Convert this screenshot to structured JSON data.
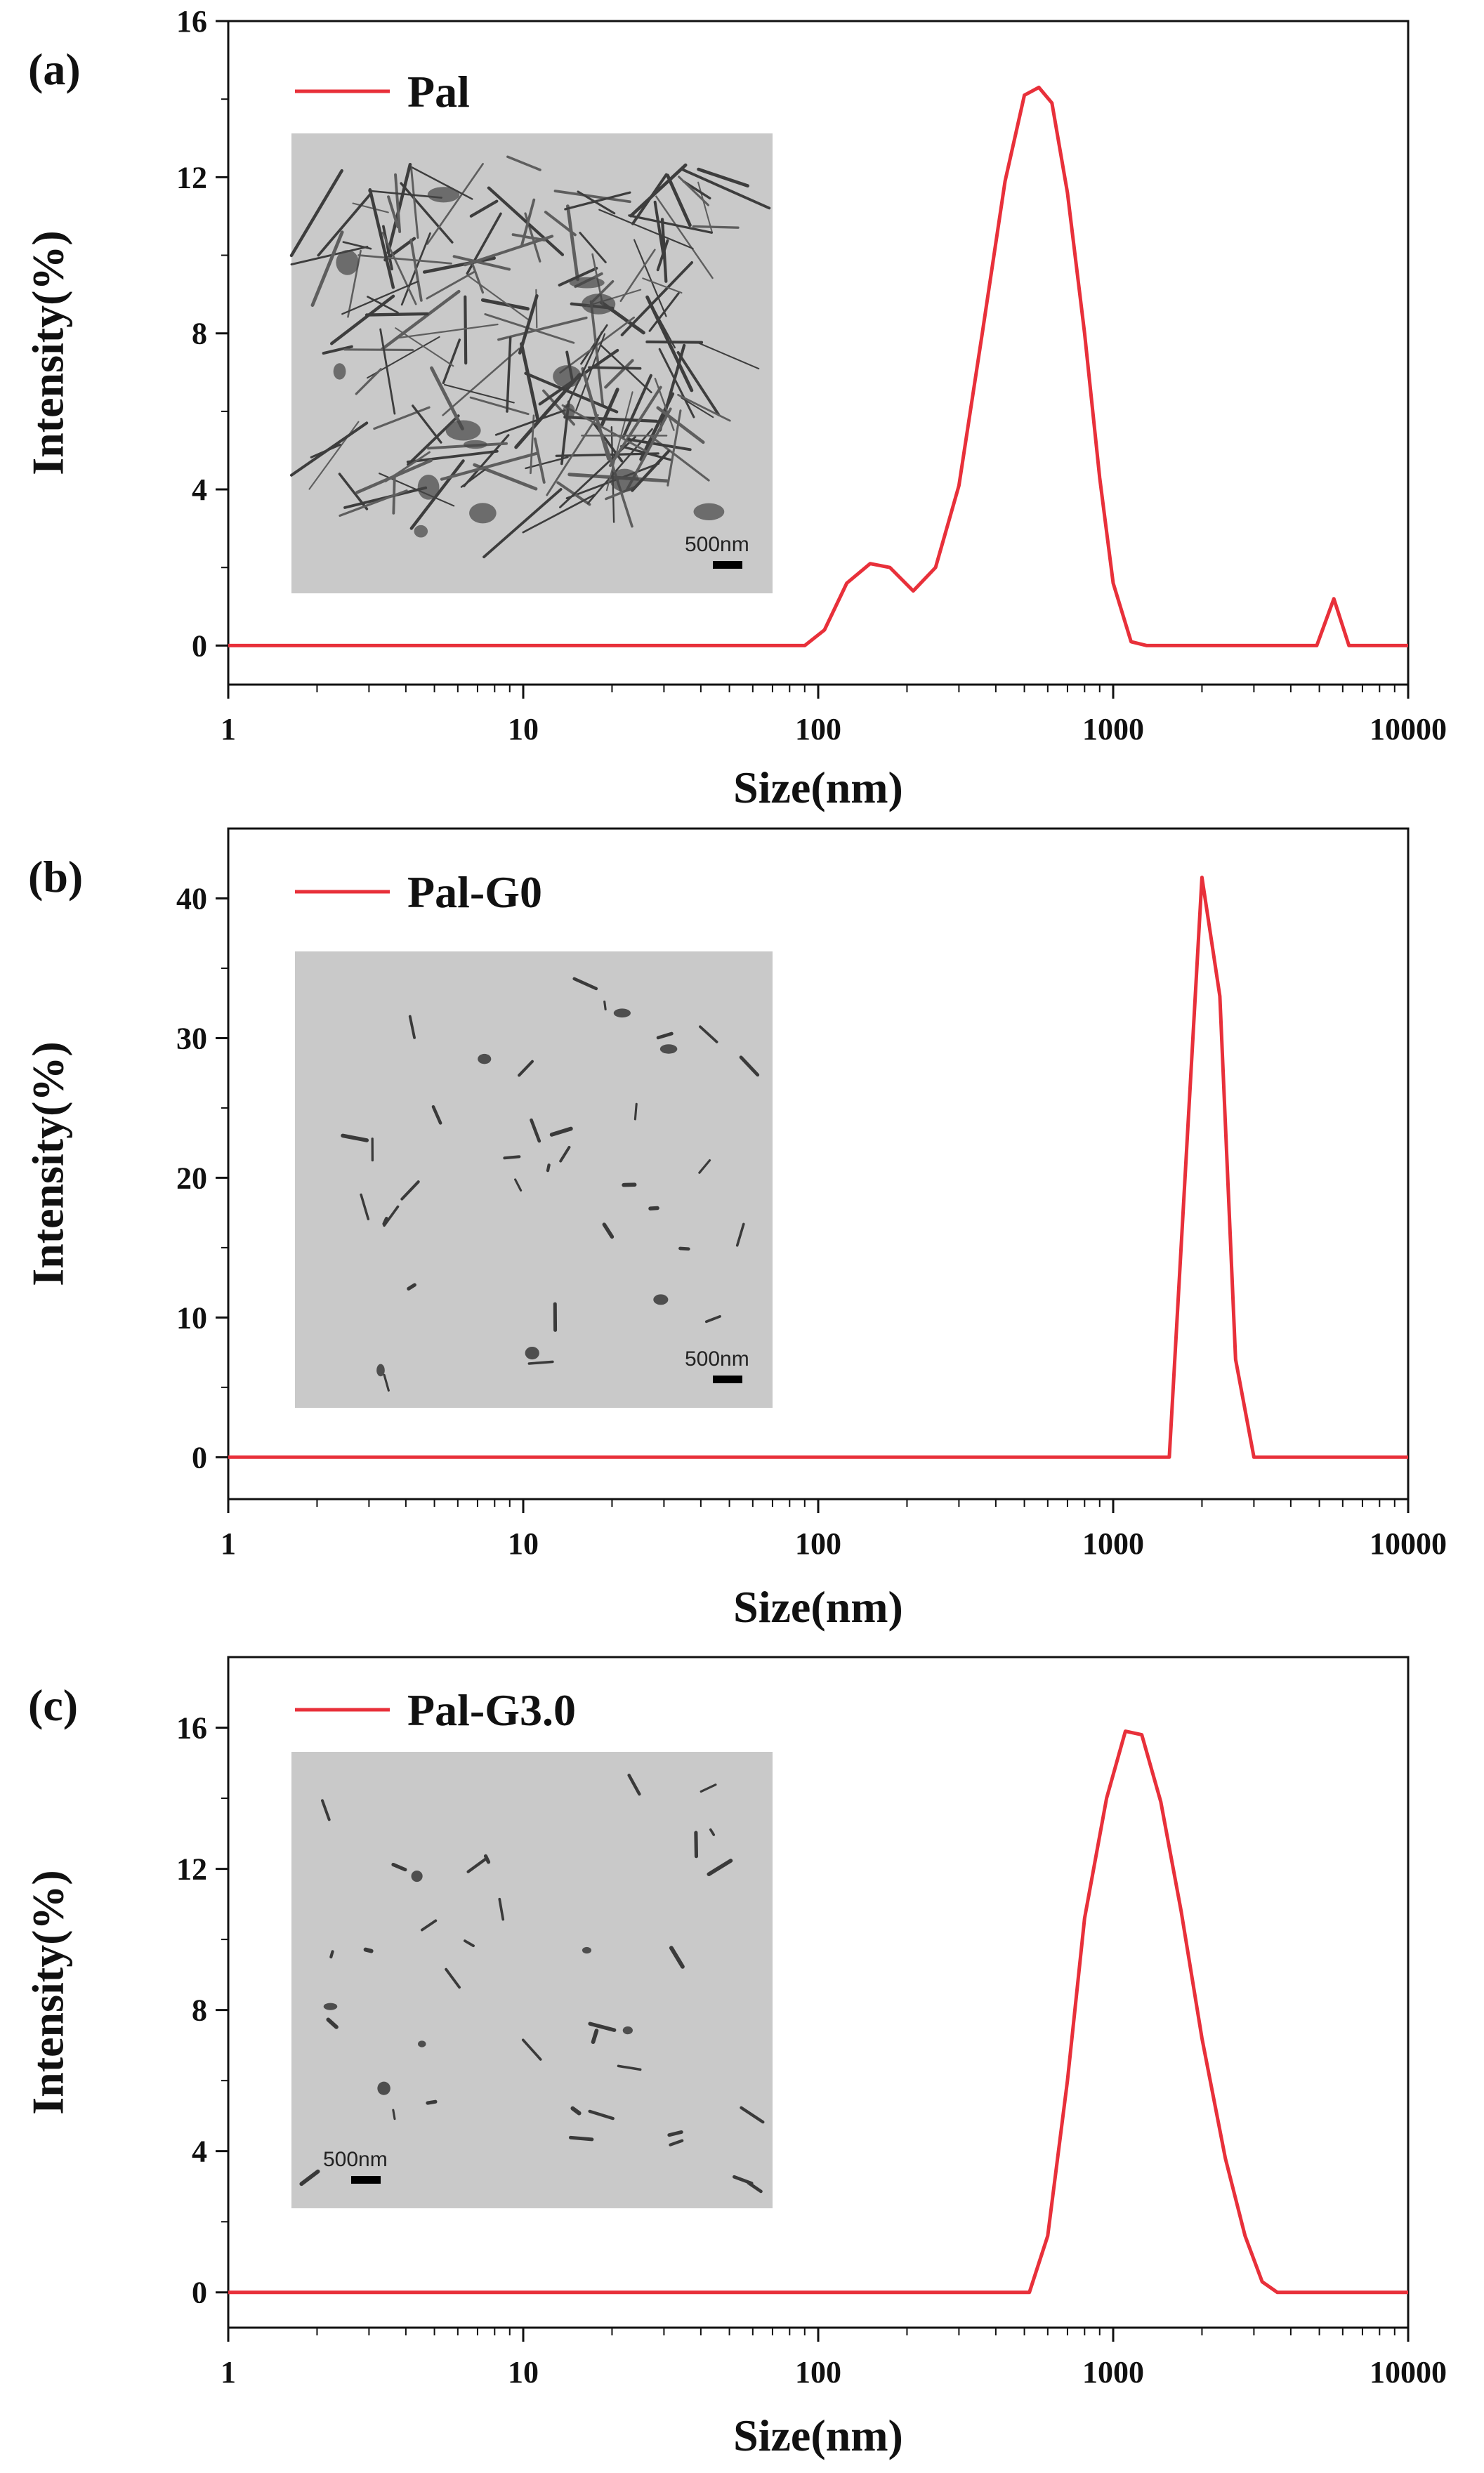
{
  "chart_data": [
    {
      "type": "line",
      "panel_label": "(a)",
      "xlabel": "Size(nm)",
      "ylabel": "Intensity(%)",
      "xscale": "log",
      "xlim": [
        1,
        10000
      ],
      "ylim": [
        -1,
        16
      ],
      "xticks": [
        "1",
        "10",
        "100",
        "1000",
        "10000"
      ],
      "yticks": [
        "0",
        "4",
        "8",
        "12",
        "16"
      ],
      "grid": false,
      "legend": {
        "position": "top-left"
      },
      "inset": {
        "description": "TEM micrograph",
        "scale_bar": "500nm",
        "scale_bar_position": "bottom-right",
        "density": "dense"
      },
      "series": [
        {
          "name": "Pal",
          "color": "#e8303a",
          "x": [
            1,
            90,
            105,
            125,
            150,
            175,
            210,
            250,
            300,
            360,
            430,
            500,
            560,
            620,
            700,
            800,
            900,
            1000,
            1150,
            1300,
            1500,
            4900,
            5600,
            6300,
            7000,
            10000
          ],
          "y": [
            0,
            0,
            0.4,
            1.6,
            2.1,
            2.0,
            1.4,
            2.0,
            4.1,
            8.0,
            11.9,
            14.1,
            14.3,
            13.9,
            11.6,
            8.0,
            4.3,
            1.6,
            0.1,
            0,
            0,
            0,
            1.2,
            0,
            0,
            0
          ]
        }
      ]
    },
    {
      "type": "line",
      "panel_label": "(b)",
      "xlabel": "Size(nm)",
      "ylabel": "Intensity(%)",
      "xscale": "log",
      "xlim": [
        1,
        10000
      ],
      "ylim": [
        -3,
        45
      ],
      "xticks": [
        "1",
        "10",
        "100",
        "1000",
        "10000"
      ],
      "yticks": [
        "0",
        "10",
        "20",
        "30",
        "40"
      ],
      "grid": false,
      "legend": {
        "position": "top-left"
      },
      "inset": {
        "description": "TEM micrograph",
        "scale_bar": "500nm",
        "scale_bar_position": "bottom-right",
        "density": "sparse"
      },
      "series": [
        {
          "name": "Pal-G0",
          "color": "#e8303a",
          "x": [
            1,
            1550,
            2000,
            2300,
            2600,
            3000,
            10000
          ],
          "y": [
            0,
            0,
            41.5,
            33.0,
            7.0,
            0,
            0
          ]
        }
      ]
    },
    {
      "type": "line",
      "panel_label": "(c)",
      "xlabel": "Size(nm)",
      "ylabel": "Intensity(%)",
      "xscale": "log",
      "xlim": [
        1,
        10000
      ],
      "ylim": [
        -1,
        18
      ],
      "xticks": [
        "1",
        "10",
        "100",
        "1000",
        "10000"
      ],
      "yticks": [
        "0",
        "4",
        "8",
        "12",
        "16"
      ],
      "grid": false,
      "legend": {
        "position": "top-left"
      },
      "inset": {
        "description": "TEM micrograph",
        "scale_bar": "500nm",
        "scale_bar_position": "bottom-left",
        "density": "sparse"
      },
      "series": [
        {
          "name": "Pal-G3.0",
          "color": "#e8303a",
          "x": [
            1,
            520,
            600,
            700,
            800,
            950,
            1100,
            1250,
            1450,
            1700,
            2000,
            2400,
            2800,
            3200,
            3600,
            10000
          ],
          "y": [
            0,
            0,
            1.6,
            6.0,
            10.6,
            14.0,
            15.9,
            15.8,
            13.9,
            10.8,
            7.2,
            3.8,
            1.6,
            0.3,
            0,
            0
          ]
        }
      ]
    }
  ]
}
